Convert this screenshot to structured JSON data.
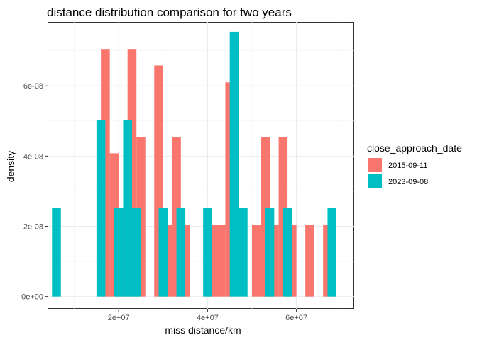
{
  "chart_data": {
    "type": "bar",
    "title": "distance distribution comparison for two years",
    "xlabel": "miss distance/km",
    "ylabel": "density",
    "xlim": [
      4000000,
      73000000
    ],
    "ylim": [
      -3.5e-09,
      7.82e-08
    ],
    "x_ticks": [
      {
        "value": 20000000,
        "label": "2e+07"
      },
      {
        "value": 40000000,
        "label": "4e+07"
      },
      {
        "value": 60000000,
        "label": "6e+07"
      }
    ],
    "y_ticks": [
      {
        "value": 0,
        "label": "0e+00"
      },
      {
        "value": 2e-08,
        "label": "2e-08"
      },
      {
        "value": 4e-08,
        "label": "4e-08"
      },
      {
        "value": 6e-08,
        "label": "6e-08"
      }
    ],
    "grid": true,
    "legend": {
      "title": "close_approach_date",
      "position": "right",
      "entries": [
        {
          "label": "2015-09-11",
          "color": "#F8766D"
        },
        {
          "label": "2023-09-08",
          "color": "#00BFC4"
        }
      ]
    },
    "bin_width": 2000000,
    "series": [
      {
        "name": "2015-09-11",
        "color": "#F8766D",
        "bins": [
          {
            "center": 17000000,
            "density": 7.05e-08
          },
          {
            "center": 19000000,
            "density": 4.08e-08
          },
          {
            "center": 21000000,
            "density": 2.52e-08
          },
          {
            "center": 23000000,
            "density": 7.05e-08
          },
          {
            "center": 25000000,
            "density": 4.54e-08
          },
          {
            "center": 29000000,
            "density": 6.58e-08
          },
          {
            "center": 31000000,
            "density": 2.04e-08
          },
          {
            "center": 33000000,
            "density": 4.54e-08
          },
          {
            "center": 35000000,
            "density": 2.04e-08
          },
          {
            "center": 41000000,
            "density": 2.04e-08
          },
          {
            "center": 43000000,
            "density": 2.04e-08
          },
          {
            "center": 45000000,
            "density": 6.1e-08
          },
          {
            "center": 51000000,
            "density": 2.04e-08
          },
          {
            "center": 53000000,
            "density": 4.54e-08
          },
          {
            "center": 55000000,
            "density": 2.04e-08
          },
          {
            "center": 57000000,
            "density": 4.54e-08
          },
          {
            "center": 59000000,
            "density": 2.04e-08
          },
          {
            "center": 63000000,
            "density": 2.04e-08
          },
          {
            "center": 67000000,
            "density": 2.04e-08
          }
        ]
      },
      {
        "name": "2023-09-08",
        "color": "#00BFC4",
        "bins": [
          {
            "center": 6000000,
            "density": 2.52e-08
          },
          {
            "center": 16000000,
            "density": 5.02e-08
          },
          {
            "center": 20000000,
            "density": 2.52e-08
          },
          {
            "center": 22000000,
            "density": 5.02e-08
          },
          {
            "center": 24000000,
            "density": 2.52e-08
          },
          {
            "center": 30000000,
            "density": 2.52e-08
          },
          {
            "center": 34000000,
            "density": 2.52e-08
          },
          {
            "center": 40000000,
            "density": 2.52e-08
          },
          {
            "center": 46000000,
            "density": 7.54e-08
          },
          {
            "center": 48000000,
            "density": 2.52e-08
          },
          {
            "center": 54000000,
            "density": 2.52e-08
          },
          {
            "center": 58000000,
            "density": 2.52e-08
          },
          {
            "center": 68000000,
            "density": 2.52e-08
          }
        ]
      }
    ]
  }
}
